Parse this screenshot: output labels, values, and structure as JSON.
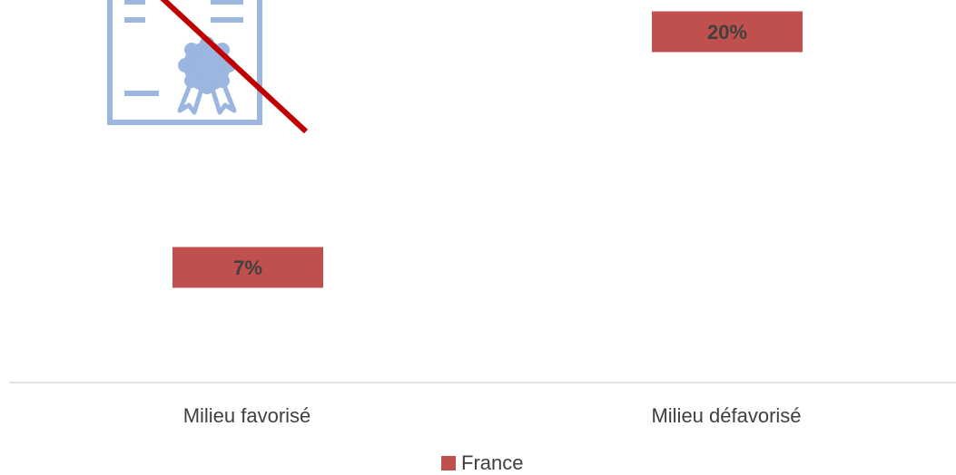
{
  "chart_data": {
    "type": "bar",
    "categories": [
      "Milieu favorisé",
      "Milieu défavorisé"
    ],
    "series": [
      {
        "name": "France",
        "values": [
          7,
          20
        ],
        "color": "#c0504d"
      }
    ],
    "value_labels": [
      "7%",
      "20%"
    ],
    "legend_position": "bottom",
    "grid": false
  },
  "decoration": {
    "icon": "crossed-out-diploma-icon",
    "icon_color": "#9bb7e0",
    "strike_color": "#c00000"
  },
  "legend": {
    "label": "France"
  }
}
